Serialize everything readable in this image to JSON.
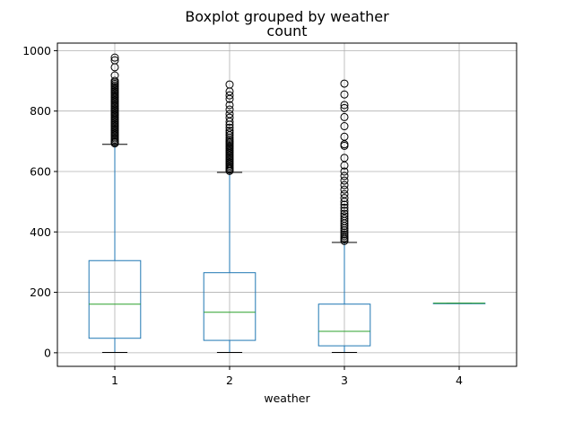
{
  "chart_data": {
    "type": "boxplot",
    "suptitle": "Boxplot grouped by weather",
    "title": "count",
    "xlabel": "weather",
    "ylabel": "",
    "categories": [
      "1",
      "2",
      "3",
      "4"
    ],
    "ylim": [
      -45,
      1025
    ],
    "yticks": [
      0,
      200,
      400,
      600,
      800,
      1000
    ],
    "grid": true,
    "box_color": "#1f77b4",
    "median_color": "#2ca02c",
    "boxes": [
      {
        "category": "1",
        "whislo": 1,
        "q1": 48,
        "med": 161,
        "q3": 305,
        "whishi": 690,
        "fliers": [
          693,
          697,
          700,
          705,
          710,
          715,
          720,
          725,
          730,
          735,
          740,
          745,
          750,
          755,
          760,
          765,
          770,
          775,
          780,
          785,
          790,
          795,
          800,
          805,
          810,
          815,
          820,
          825,
          830,
          835,
          840,
          845,
          850,
          855,
          860,
          865,
          870,
          875,
          880,
          885,
          890,
          895,
          900,
          918,
          945,
          968,
          977
        ]
      },
      {
        "category": "2",
        "whislo": 1,
        "q1": 41,
        "med": 134,
        "q3": 265,
        "whishi": 597,
        "fliers": [
          602,
          606,
          610,
          615,
          620,
          625,
          630,
          635,
          640,
          645,
          650,
          655,
          660,
          665,
          670,
          675,
          680,
          685,
          690,
          695,
          700,
          705,
          712,
          720,
          728,
          735,
          745,
          755,
          765,
          778,
          790,
          805,
          820,
          840,
          852,
          865,
          888
        ]
      },
      {
        "category": "3",
        "whislo": 1,
        "q1": 23,
        "med": 71,
        "q3": 161,
        "whishi": 365,
        "fliers": [
          370,
          375,
          380,
          386,
          392,
          398,
          405,
          412,
          420,
          428,
          436,
          444,
          452,
          460,
          470,
          480,
          490,
          500,
          512,
          525,
          540,
          555,
          570,
          585,
          600,
          620,
          645,
          685,
          690,
          715,
          750,
          780,
          810,
          820,
          855,
          891
        ]
      },
      {
        "category": "4",
        "whislo": 164,
        "q1": 164,
        "med": 164,
        "q3": 164,
        "whishi": 164,
        "fliers": []
      }
    ]
  }
}
